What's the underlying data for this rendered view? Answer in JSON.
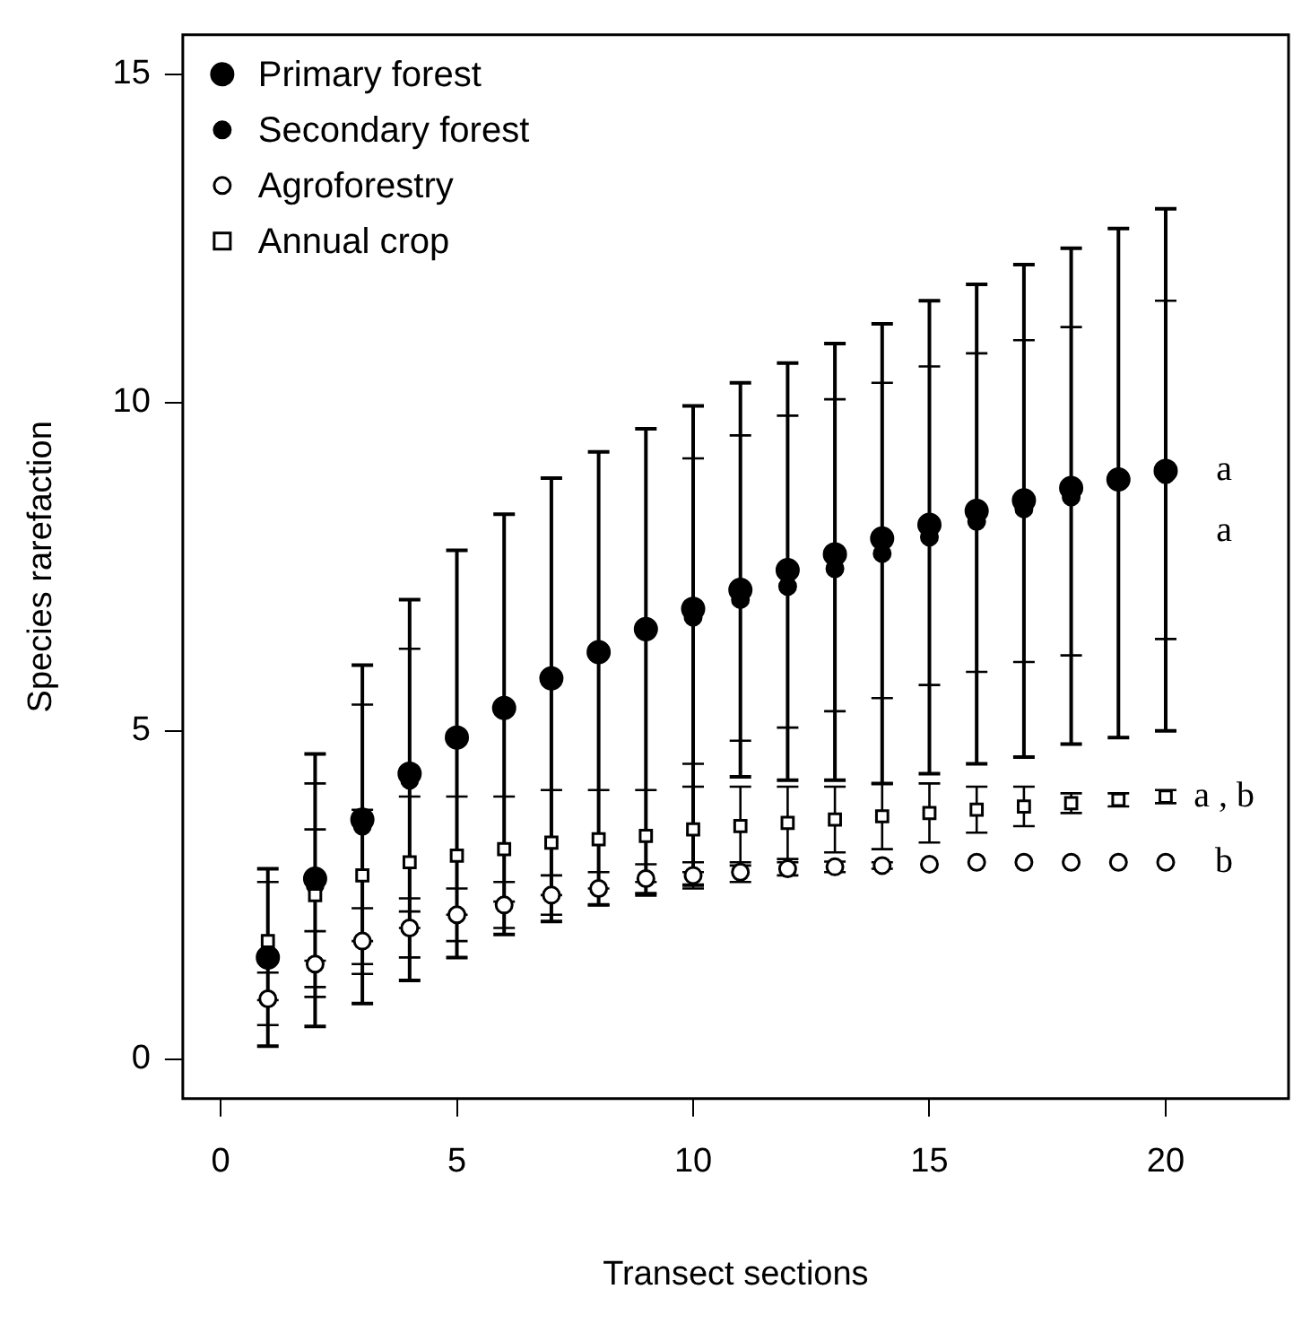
{
  "chart_data": {
    "type": "scatter",
    "xlabel": "Transect sections",
    "ylabel": "Species rarefaction",
    "x": [
      1,
      2,
      3,
      4,
      5,
      6,
      7,
      8,
      9,
      10,
      11,
      12,
      13,
      14,
      15,
      16,
      17,
      18,
      19,
      20
    ],
    "xlim": [
      -0.8,
      22.6
    ],
    "xticks": [
      0,
      5,
      10,
      15,
      20
    ],
    "ylim": [
      -0.6,
      15.6
    ],
    "yticks": [
      0,
      5,
      10,
      15
    ],
    "grid": false,
    "legend": "top left",
    "series": [
      {
        "name": "Primary forest",
        "color": "#000000",
        "marker": "circle",
        "values": [
          1.55,
          2.75,
          3.65,
          4.35,
          4.9,
          5.35,
          5.8,
          6.2,
          6.55,
          6.86,
          7.15,
          7.45,
          7.69,
          7.93,
          8.14,
          8.35,
          8.51,
          8.7,
          8.83,
          8.96
        ],
        "errors": [
          [
            0.2,
            2.9
          ],
          [
            0.5,
            4.65
          ],
          [
            0.85,
            6.0
          ],
          [
            1.2,
            7.0
          ],
          [
            1.55,
            7.75
          ],
          [
            1.9,
            8.3
          ],
          [
            2.1,
            8.85
          ],
          [
            2.35,
            9.25
          ],
          [
            2.5,
            9.6
          ],
          [
            2.65,
            9.95
          ],
          [
            4.3,
            10.3
          ],
          [
            4.25,
            10.6
          ],
          [
            4.25,
            10.9
          ],
          [
            4.2,
            11.2
          ],
          [
            4.35,
            11.55
          ],
          [
            4.5,
            11.8
          ],
          [
            4.6,
            12.1
          ],
          [
            4.8,
            12.35
          ],
          [
            4.9,
            12.65
          ],
          [
            5.0,
            12.95
          ]
        ]
      },
      {
        "name": "Secondary forest",
        "color": "#000000",
        "marker": "circle",
        "values": [
          null,
          2.65,
          3.55,
          4.25,
          null,
          null,
          null,
          null,
          null,
          6.73,
          7.0,
          7.2,
          7.47,
          7.7,
          7.95,
          8.19,
          8.38,
          8.56,
          null,
          8.9
        ],
        "errors": [
          null,
          [
            1.1,
            4.2
          ],
          [
            1.45,
            5.4
          ],
          [
            2.25,
            6.25
          ],
          null,
          null,
          null,
          null,
          null,
          [
            4.5,
            9.15
          ],
          [
            4.85,
            9.5
          ],
          [
            5.05,
            9.8
          ],
          [
            5.3,
            10.05
          ],
          [
            5.5,
            10.3
          ],
          [
            5.7,
            10.55
          ],
          [
            5.9,
            10.75
          ],
          [
            6.05,
            10.95
          ],
          [
            6.15,
            11.15
          ],
          null,
          [
            6.4,
            11.55
          ]
        ]
      },
      {
        "name": "Agroforestry",
        "color": "#000000",
        "marker": "circle-open",
        "values": [
          0.92,
          1.45,
          1.8,
          2.0,
          2.2,
          2.35,
          2.5,
          2.6,
          2.75,
          2.8,
          2.85,
          2.9,
          2.93,
          2.95,
          2.97,
          3.0,
          3.0,
          3.0,
          3.0,
          3.0
        ],
        "errors": [
          0.4,
          0.5,
          0.5,
          0.45,
          0.4,
          0.35,
          0.3,
          0.25,
          0.22,
          0.2,
          0.15,
          0.1,
          0.08,
          0.05,
          null,
          null,
          null,
          null,
          null,
          null
        ]
      },
      {
        "name": "Annual crop",
        "color": "#000000",
        "marker": "square-open",
        "values": [
          1.8,
          2.5,
          2.8,
          3.0,
          3.1,
          3.2,
          3.3,
          3.35,
          3.4,
          3.5,
          3.55,
          3.6,
          3.65,
          3.7,
          3.75,
          3.8,
          3.85,
          3.9,
          3.95,
          4.0
        ],
        "errors": [
          0.9,
          1.0,
          1.0,
          1.0,
          0.9,
          0.8,
          0.8,
          0.75,
          0.7,
          0.65,
          0.6,
          0.55,
          0.5,
          0.5,
          0.45,
          0.35,
          0.3,
          0.15,
          0.1,
          0.1
        ]
      }
    ],
    "annotations": [
      "a",
      "a",
      "b",
      "a , b"
    ]
  }
}
